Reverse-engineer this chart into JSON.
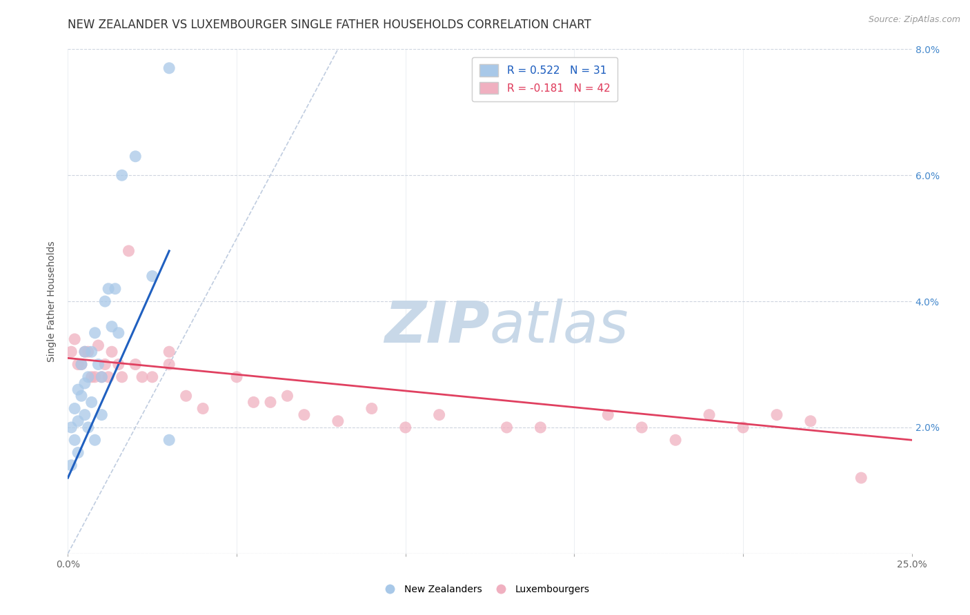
{
  "title": "NEW ZEALANDER VS LUXEMBOURGER SINGLE FATHER HOUSEHOLDS CORRELATION CHART",
  "source": "Source: ZipAtlas.com",
  "ylabel": "Single Father Households",
  "xlim": [
    0.0,
    0.25
  ],
  "ylim": [
    0.0,
    0.08
  ],
  "xticks": [
    0.0,
    0.05,
    0.1,
    0.15,
    0.2,
    0.25
  ],
  "xticklabels": [
    "0.0%",
    "",
    "",
    "",
    "",
    "25.0%"
  ],
  "yticks": [
    0.0,
    0.02,
    0.04,
    0.06,
    0.08
  ],
  "yticklabels_right": [
    "",
    "2.0%",
    "4.0%",
    "6.0%",
    "8.0%"
  ],
  "nz_color": "#a8c8e8",
  "lux_color": "#f0b0c0",
  "nz_line_color": "#2060c0",
  "lux_line_color": "#e04060",
  "ref_line_color": "#b0c0d8",
  "watermark_color": "#c8d8e8",
  "legend_r_nz": "R = 0.522",
  "legend_n_nz": "N = 31",
  "legend_r_lux": "R = -0.181",
  "legend_n_lux": "N = 42",
  "nz_x": [
    0.001,
    0.001,
    0.002,
    0.002,
    0.003,
    0.003,
    0.003,
    0.004,
    0.004,
    0.005,
    0.005,
    0.005,
    0.006,
    0.006,
    0.007,
    0.007,
    0.008,
    0.008,
    0.009,
    0.01,
    0.01,
    0.011,
    0.012,
    0.013,
    0.014,
    0.015,
    0.016,
    0.02,
    0.025,
    0.03,
    0.03
  ],
  "nz_y": [
    0.014,
    0.02,
    0.018,
    0.023,
    0.016,
    0.021,
    0.026,
    0.025,
    0.03,
    0.022,
    0.027,
    0.032,
    0.02,
    0.028,
    0.024,
    0.032,
    0.035,
    0.018,
    0.03,
    0.022,
    0.028,
    0.04,
    0.042,
    0.036,
    0.042,
    0.035,
    0.06,
    0.063,
    0.044,
    0.018,
    0.077
  ],
  "lux_x": [
    0.001,
    0.002,
    0.003,
    0.004,
    0.005,
    0.006,
    0.007,
    0.008,
    0.009,
    0.01,
    0.011,
    0.012,
    0.013,
    0.015,
    0.016,
    0.018,
    0.02,
    0.022,
    0.025,
    0.03,
    0.03,
    0.035,
    0.04,
    0.05,
    0.055,
    0.06,
    0.065,
    0.07,
    0.08,
    0.09,
    0.1,
    0.11,
    0.13,
    0.14,
    0.16,
    0.17,
    0.18,
    0.19,
    0.2,
    0.21,
    0.22,
    0.235
  ],
  "lux_y": [
    0.032,
    0.034,
    0.03,
    0.03,
    0.032,
    0.032,
    0.028,
    0.028,
    0.033,
    0.028,
    0.03,
    0.028,
    0.032,
    0.03,
    0.028,
    0.048,
    0.03,
    0.028,
    0.028,
    0.03,
    0.032,
    0.025,
    0.023,
    0.028,
    0.024,
    0.024,
    0.025,
    0.022,
    0.021,
    0.023,
    0.02,
    0.022,
    0.02,
    0.02,
    0.022,
    0.02,
    0.018,
    0.022,
    0.02,
    0.022,
    0.021,
    0.012
  ],
  "background_color": "#ffffff",
  "grid_color": "#c8d0dc",
  "title_fontsize": 12,
  "axis_fontsize": 10,
  "legend_fontsize": 11,
  "nz_line_x0": 0.0,
  "nz_line_x1": 0.03,
  "nz_line_y0": 0.012,
  "nz_line_y1": 0.048,
  "lux_line_x0": 0.0,
  "lux_line_x1": 0.25,
  "lux_line_y0": 0.031,
  "lux_line_y1": 0.018
}
